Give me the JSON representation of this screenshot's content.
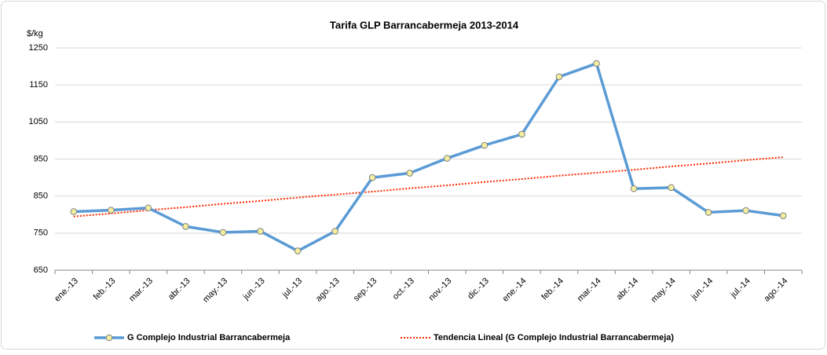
{
  "chart_data": {
    "type": "line",
    "title": "Tarifa GLP Barrancabermeja 2013-2014",
    "y_label": "$/kg",
    "categories": [
      "ene.-13",
      "feb.-13",
      "mar.-13",
      "abr.-13",
      "may.-13",
      "jun.-13",
      "jul.-13",
      "ago.-13",
      "sep.-13",
      "oct.-13",
      "nov.-13",
      "dic.-13",
      "ene.-14",
      "feb.-14",
      "mar.-14",
      "abr.-14",
      "may.-14",
      "jun.-14",
      "jul.-14",
      "ago.-14"
    ],
    "series": [
      {
        "name": "G Complejo Industrial Barrancabermeja",
        "color": "#5b9bd5",
        "marker_color": "#f3eea0",
        "values": [
          808,
          812,
          818,
          768,
          752,
          755,
          702,
          755,
          900,
          912,
          952,
          987,
          1017,
          1172,
          1208,
          870,
          873,
          806,
          811,
          797
        ]
      },
      {
        "name": "Tendencia Lineal (G Complejo Industrial Barrancabermeja)",
        "color": "#ff2a00",
        "dashed": true,
        "values": [
          795,
          803,
          812,
          820,
          829,
          837,
          846,
          854,
          862,
          871,
          879,
          888,
          896,
          905,
          913,
          921,
          930,
          938,
          947,
          955
        ]
      }
    ],
    "ylim": [
      650,
      1250
    ],
    "yticks": [
      650,
      750,
      850,
      950,
      1050,
      1150,
      1250
    ],
    "grid": true,
    "legend": "bottom"
  }
}
